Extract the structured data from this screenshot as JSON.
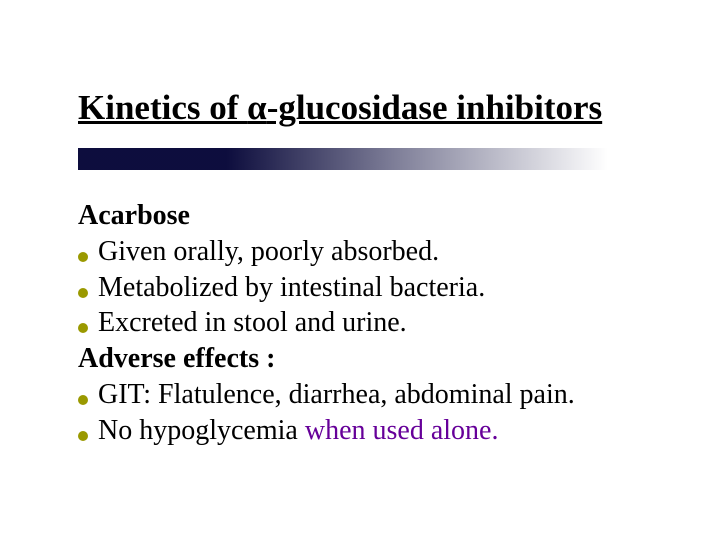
{
  "colors": {
    "background": "#ffffff",
    "text": "#000000",
    "special_text": "#660099",
    "bullet": "#9a9900",
    "bar_dark": "#000033"
  },
  "typography": {
    "title_fontsize": 35,
    "body_fontsize": 28,
    "font_family": "Times New Roman"
  },
  "title": {
    "prefix": "Kinetics of ",
    "alpha": "α",
    "suffix": "-glucosidase inhibitors"
  },
  "content": {
    "section1_heading": "Acarbose",
    "section1_items": [
      "Given orally, poorly absorbed.",
      "Metabolized by intestinal bacteria.",
      "Excreted in stool and urine."
    ],
    "section2_heading": "Adverse effects :",
    "section2_items": [
      {
        "pre": "GIT: Flatulence, diarrhea, abdominal pain.",
        "special": ""
      },
      {
        "pre": "No hypoglycemia ",
        "special": "when used alone."
      }
    ]
  }
}
